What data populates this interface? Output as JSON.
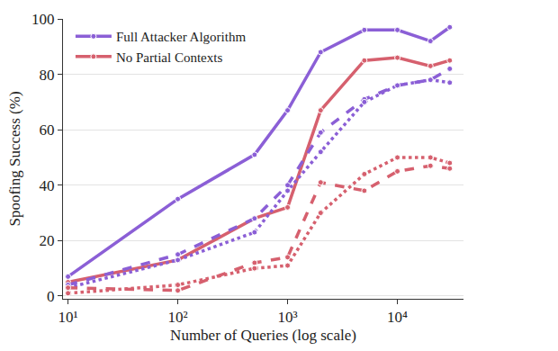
{
  "chart_data": {
    "type": "line",
    "x_label": "Number of Queries (log scale)",
    "y_label": "Spoofing Success (%)",
    "x": [
      10,
      100,
      500,
      1000,
      2000,
      5000,
      10000,
      20000,
      30000
    ],
    "series": [
      {
        "name": "Full Attacker Algorithm",
        "color": "#8b5fd6",
        "line_style": "solid",
        "marker": "o",
        "values": [
          7,
          35,
          51,
          67,
          88,
          96,
          96,
          92,
          97
        ]
      },
      {
        "name": "No Partial Contexts",
        "color": "#d6606e",
        "line_style": "solid",
        "marker": "o",
        "values": [
          5,
          13,
          28,
          32,
          67,
          85,
          86,
          83,
          85
        ]
      },
      {
        "color": "#8b5fd6",
        "line_style": "dashed",
        "marker": "o",
        "values": [
          4,
          15,
          28,
          40,
          59,
          71,
          76,
          78,
          82
        ]
      },
      {
        "color": "#8b5fd6",
        "line_style": "dotted",
        "marker": "o",
        "values": [
          3,
          13,
          23,
          38,
          52,
          70,
          76,
          78,
          77
        ]
      },
      {
        "color": "#d6606e",
        "line_style": "dashed",
        "marker": "o",
        "values": [
          3,
          2,
          12,
          14,
          41,
          38,
          45,
          47,
          46
        ]
      },
      {
        "color": "#d6606e",
        "line_style": "dotted",
        "marker": "o",
        "values": [
          1,
          4,
          10,
          11,
          30,
          44,
          50,
          50,
          48
        ]
      }
    ],
    "log": "x",
    "xlim": [
      9,
      40000
    ],
    "xticks": [
      {
        "value": 10,
        "label": "10¹"
      },
      {
        "value": 100,
        "label": "10²"
      },
      {
        "value": 1000,
        "label": "10³"
      },
      {
        "value": 10000,
        "label": "10⁴"
      }
    ],
    "ylim": [
      -1,
      100
    ],
    "yticks": [
      0,
      20,
      40,
      60,
      80,
      100
    ],
    "grid": true,
    "legend": "upper left"
  }
}
